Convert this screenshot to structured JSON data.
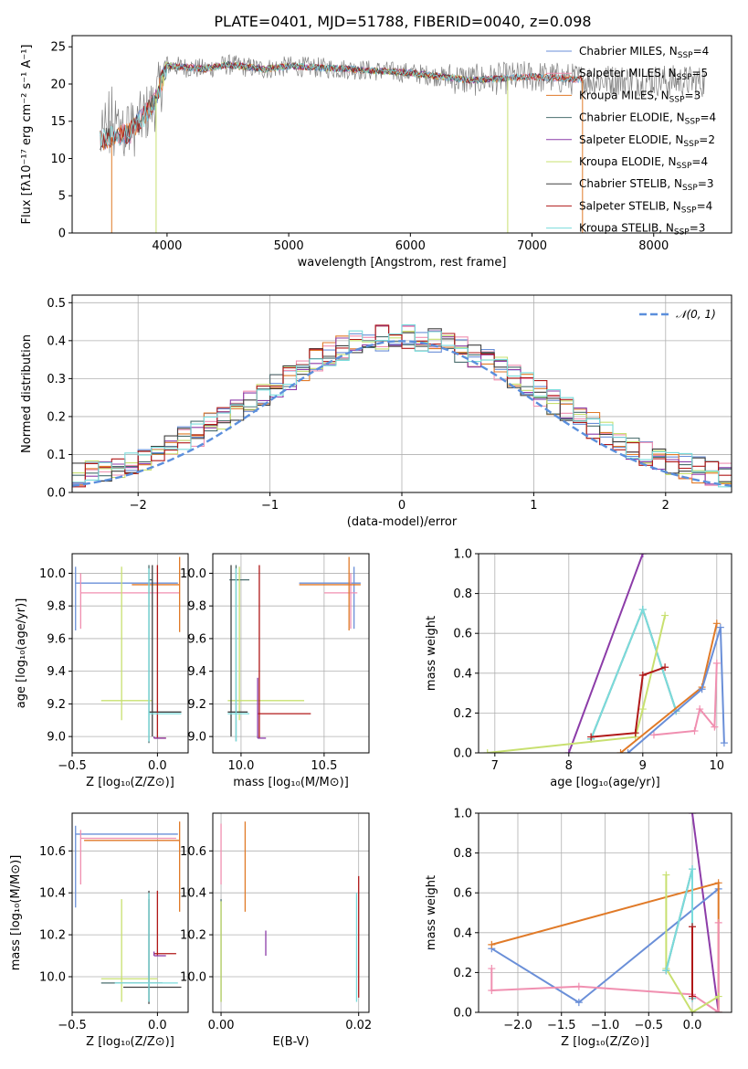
{
  "figure": {
    "title": "PLATE=0401, MJD=51788, FIBERID=0040, z=0.098"
  },
  "series_colors": [
    "#6a8fd8",
    "#f08fb0",
    "#e07a28",
    "#4a6e6e",
    "#8c3ca8",
    "#c8e070",
    "#404040",
    "#b01818",
    "#7adcdc"
  ],
  "spectrum_noise_color": "#808080",
  "gaussian_color": "#5b8fdc",
  "chart_data": [
    {
      "id": "spectrum",
      "type": "line",
      "title": "PLATE=0401, MJD=51788, FIBERID=0040, z=0.098",
      "xlabel": "wavelength [Angstrom, rest frame]",
      "ylabel": "Flux [fλ10⁻¹⁷ erg cm⁻² s⁻¹ A⁻¹]",
      "xlim": [
        3220,
        8640
      ],
      "ylim": [
        0,
        26.5
      ],
      "xticks": [
        4000,
        5000,
        6000,
        7000,
        8000
      ],
      "yticks": [
        0,
        5,
        10,
        15,
        20,
        25
      ],
      "grid": false,
      "legend_position": "top-right",
      "legend": [
        "Chabrier MILES, N_SSP=4",
        "Salpeter MILES, N_SSP=5",
        "Kroupa MILES, N_SSP=3",
        "Chabrier ELODIE, N_SSP=4",
        "Salpeter ELODIE, N_SSP=2",
        "Kroupa ELODIE, N_SSP=4",
        "Chabrier STELIB, N_SSP=3",
        "Salpeter STELIB, N_SSP=4",
        "Kroupa STELIB, N_SSP=3"
      ],
      "continuum_shape": {
        "x": [
          3450,
          3700,
          3800,
          3900,
          4000,
          4300,
          4500,
          4800,
          5000,
          5500,
          6000,
          6500,
          7000,
          7500,
          8000,
          8400
        ],
        "y": [
          12.5,
          13.5,
          15.5,
          17.5,
          22.5,
          22.0,
          22.6,
          22.0,
          22.4,
          22.0,
          21.5,
          20.5,
          21.0,
          20.5,
          20.5,
          20.3
        ]
      },
      "model_ranges": [
        [
          3450,
          7420
        ],
        [
          3450,
          7420
        ],
        [
          3450,
          7420
        ],
        [
          3900,
          6800
        ],
        [
          3900,
          6800
        ],
        [
          3900,
          6800
        ],
        [
          3450,
          7420
        ],
        [
          3450,
          7420
        ],
        [
          3450,
          7420
        ]
      ],
      "drop_lines": [
        {
          "x": 3545,
          "color_index": 2
        },
        {
          "x": 3910,
          "color_index": 5
        },
        {
          "x": 6800,
          "color_index": 5
        },
        {
          "x": 7415,
          "color_index": 2
        }
      ]
    },
    {
      "id": "residual_hist",
      "type": "step",
      "xlabel": "(data-model)/error",
      "ylabel": "Normed distribution",
      "xlim": [
        -2.5,
        2.5
      ],
      "ylim": [
        0,
        0.52
      ],
      "xticks": [
        -2,
        -1,
        0,
        1,
        2
      ],
      "yticks": [
        0.0,
        0.1,
        0.2,
        0.3,
        0.4,
        0.5
      ],
      "grid": true,
      "legend_position": "top-right",
      "legend": [
        "𝒩(0, 1)"
      ],
      "bin_width": 0.1
    },
    {
      "id": "age_vs_Z",
      "type": "errorbar",
      "xlabel": "Z [log₁₀(Z/Z⊙)]",
      "ylabel": "age  [log₁₀(age/yr)]",
      "xlim": [
        -0.5,
        0.18
      ],
      "ylim": [
        8.9,
        10.12
      ],
      "xticks": [
        -0.5,
        0.0
      ],
      "yticks": [
        9.0,
        9.2,
        9.4,
        9.6,
        9.8,
        10.0
      ],
      "grid": true,
      "points": [
        {
          "c": 0,
          "x": -0.48,
          "xe": [
            -0.48,
            0.12
          ],
          "y": 9.94,
          "ye": [
            9.65,
            10.04
          ]
        },
        {
          "c": 1,
          "x": -0.45,
          "xe": [
            -0.45,
            0.13
          ],
          "y": 9.88,
          "ye": [
            9.66,
            10.0
          ]
        },
        {
          "c": 2,
          "x": 0.13,
          "xe": [
            -0.15,
            0.13
          ],
          "y": 9.93,
          "ye": [
            9.64,
            10.1
          ]
        },
        {
          "c": 3,
          "x": -0.05,
          "xe": [
            -0.05,
            -0.03
          ],
          "y": 9.96,
          "ye": [
            8.96,
            10.05
          ]
        },
        {
          "c": 5,
          "x": -0.21,
          "xe": [
            -0.33,
            -0.03
          ],
          "y": 9.22,
          "ye": [
            9.1,
            10.04
          ]
        },
        {
          "c": 6,
          "x": -0.03,
          "xe": [
            -0.05,
            0.14
          ],
          "y": 9.15,
          "ye": [
            9.0,
            10.05
          ]
        },
        {
          "c": 7,
          "x": 0.0,
          "xe": [
            -0.02,
            0.05
          ],
          "y": 8.99,
          "ye": [
            8.99,
            10.05
          ]
        },
        {
          "c": 8,
          "x": -0.05,
          "xe": [
            -0.05,
            0.14
          ],
          "y": 9.14,
          "ye": [
            8.97,
            10.03
          ]
        },
        {
          "c": 4,
          "x": -0.02,
          "xe": [
            -0.02,
            0.05
          ],
          "y": 8.99,
          "ye": [
            8.99,
            9.0
          ]
        }
      ]
    },
    {
      "id": "age_vs_mass",
      "type": "errorbar",
      "xlabel": "mass [log₁₀(M/M⊙)]",
      "ylabel": "",
      "xlim": [
        9.83,
        10.77
      ],
      "ylim": [
        8.9,
        10.12
      ],
      "xticks": [
        10.0,
        10.5
      ],
      "yticks": [
        9.0,
        9.2,
        9.4,
        9.6,
        9.8,
        10.0
      ],
      "grid": true,
      "points": [
        {
          "c": 0,
          "x": 10.68,
          "xe": [
            10.35,
            10.72
          ],
          "y": 9.94,
          "ye": [
            9.66,
            10.04
          ]
        },
        {
          "c": 1,
          "x": 10.66,
          "xe": [
            10.5,
            10.7
          ],
          "y": 9.88,
          "ye": [
            9.66,
            10.0
          ]
        },
        {
          "c": 2,
          "x": 10.65,
          "xe": [
            10.35,
            10.72
          ],
          "y": 9.93,
          "ye": [
            9.65,
            10.1
          ]
        },
        {
          "c": 3,
          "x": 9.97,
          "xe": [
            9.93,
            10.05
          ],
          "y": 9.96,
          "ye": [
            8.97,
            10.05
          ]
        },
        {
          "c": 5,
          "x": 9.99,
          "xe": [
            9.92,
            10.38
          ],
          "y": 9.22,
          "ye": [
            9.1,
            10.04
          ]
        },
        {
          "c": 6,
          "x": 9.94,
          "xe": [
            9.92,
            10.04
          ],
          "y": 9.15,
          "ye": [
            9.0,
            10.05
          ]
        },
        {
          "c": 7,
          "x": 10.11,
          "xe": [
            10.1,
            10.42
          ],
          "y": 9.14,
          "ye": [
            8.99,
            10.05
          ]
        },
        {
          "c": 8,
          "x": 9.97,
          "xe": [
            9.92,
            10.05
          ],
          "y": 9.14,
          "ye": [
            8.97,
            10.03
          ]
        },
        {
          "c": 4,
          "x": 10.1,
          "xe": [
            10.1,
            10.15
          ],
          "y": 8.99,
          "ye": [
            8.99,
            9.36
          ]
        }
      ]
    },
    {
      "id": "weight_vs_age",
      "type": "line",
      "xlabel": "age  [log₁₀(age/yr)]",
      "ylabel": "mass weight",
      "xlim": [
        6.78,
        10.2
      ],
      "ylim": [
        0,
        1.0
      ],
      "xticks": [
        7,
        8,
        9,
        10
      ],
      "yticks": [
        0.0,
        0.2,
        0.4,
        0.6,
        0.8,
        1.0
      ],
      "grid": true,
      "series": [
        {
          "c": 4,
          "x": [
            8.0,
            9.0
          ],
          "y": [
            0.0,
            1.0
          ]
        },
        {
          "c": 3,
          "x": [
            8.3,
            9.0,
            9.45
          ],
          "y": [
            0.07,
            0.72,
            0.21
          ]
        },
        {
          "c": 8,
          "x": [
            8.3,
            9.0,
            9.45
          ],
          "y": [
            0.07,
            0.72,
            0.21
          ]
        },
        {
          "c": 5,
          "x": [
            6.9,
            8.9,
            9.0,
            9.3
          ],
          "y": [
            0.0,
            0.08,
            0.22,
            0.69
          ]
        },
        {
          "c": 7,
          "x": [
            8.3,
            8.9,
            9.0,
            9.3
          ],
          "y": [
            0.08,
            0.1,
            0.39,
            0.43
          ]
        },
        {
          "c": 1,
          "x": [
            9.15,
            9.7,
            9.77,
            9.97,
            10.0
          ],
          "y": [
            0.09,
            0.11,
            0.22,
            0.13,
            0.45
          ]
        },
        {
          "c": 2,
          "x": [
            8.7,
            9.8,
            10.0
          ],
          "y": [
            0.0,
            0.33,
            0.65
          ]
        },
        {
          "c": 0,
          "x": [
            8.8,
            9.8,
            10.05,
            10.1
          ],
          "y": [
            0.0,
            0.32,
            0.63,
            0.05
          ]
        }
      ]
    },
    {
      "id": "mass_vs_Z",
      "type": "errorbar",
      "xlabel": "Z [log₁₀(Z/Z⊙)]",
      "ylabel": "mass [log₁₀(M/M⊙)]",
      "xlim": [
        -0.5,
        0.18
      ],
      "ylim": [
        9.83,
        10.78
      ],
      "xticks": [
        -0.5,
        0.0
      ],
      "yticks": [
        10.0,
        10.2,
        10.4,
        10.6
      ],
      "grid": true,
      "points": [
        {
          "c": 0,
          "x": -0.48,
          "xe": [
            -0.48,
            0.12
          ],
          "y": 10.68,
          "ye": [
            10.33,
            10.72
          ]
        },
        {
          "c": 1,
          "x": -0.45,
          "xe": [
            -0.45,
            0.11
          ],
          "y": 10.66,
          "ye": [
            10.44,
            10.7
          ]
        },
        {
          "c": 2,
          "x": 0.13,
          "xe": [
            -0.43,
            0.13
          ],
          "y": 10.65,
          "ye": [
            10.31,
            10.74
          ]
        },
        {
          "c": 3,
          "x": -0.05,
          "xe": [
            -0.33,
            0.03
          ],
          "y": 9.97,
          "ye": [
            9.88,
            10.37
          ]
        },
        {
          "c": 5,
          "x": -0.21,
          "xe": [
            -0.33,
            0.0
          ],
          "y": 9.99,
          "ye": [
            9.88,
            10.37
          ]
        },
        {
          "c": 6,
          "x": -0.05,
          "xe": [
            -0.2,
            0.14
          ],
          "y": 9.95,
          "ye": [
            9.87,
            10.41
          ]
        },
        {
          "c": 7,
          "x": 0.0,
          "xe": [
            -0.02,
            0.11
          ],
          "y": 10.11,
          "ye": [
            10.1,
            10.41
          ]
        },
        {
          "c": 8,
          "x": -0.05,
          "xe": [
            -0.25,
            0.12
          ],
          "y": 9.97,
          "ye": [
            9.88,
            10.4
          ]
        },
        {
          "c": 4,
          "x": -0.02,
          "xe": [
            -0.02,
            0.05
          ],
          "y": 10.1,
          "ye": [
            10.1,
            10.12
          ]
        }
      ]
    },
    {
      "id": "mass_vs_ebv",
      "type": "errorbar",
      "xlabel": "E(B-V)",
      "ylabel": "",
      "xlim": [
        -0.0012,
        0.0215
      ],
      "ylim": [
        9.83,
        10.78
      ],
      "xticks": [
        0.0,
        0.02
      ],
      "yticks": [
        10.0,
        10.2,
        10.4,
        10.6
      ],
      "grid": true,
      "points": [
        {
          "c": 1,
          "x": 0.0,
          "xe": [
            0.0,
            0.0
          ],
          "y": 10.66,
          "ye": [
            10.44,
            10.73
          ]
        },
        {
          "c": 3,
          "x": 0.0,
          "xe": [
            0.0,
            0.0
          ],
          "y": 9.97,
          "ye": [
            9.88,
            10.37
          ]
        },
        {
          "c": 5,
          "x": 0.0,
          "xe": [
            0.0,
            0.0
          ],
          "y": 9.99,
          "ye": [
            9.88,
            10.36
          ]
        },
        {
          "c": 2,
          "x": 0.0035,
          "xe": [
            0.0035,
            0.0035
          ],
          "y": 10.65,
          "ye": [
            10.31,
            10.74
          ]
        },
        {
          "c": 4,
          "x": 0.0065,
          "xe": [
            0.0065,
            0.0065
          ],
          "y": 10.1,
          "ye": [
            10.1,
            10.22
          ]
        },
        {
          "c": 7,
          "x": 0.02,
          "xe": [
            0.02,
            0.02
          ],
          "y": 10.11,
          "ye": [
            9.9,
            10.48
          ]
        },
        {
          "c": 8,
          "x": 0.0197,
          "xe": [
            0.0197,
            0.0197
          ],
          "y": 9.97,
          "ye": [
            9.88,
            10.4
          ]
        }
      ]
    },
    {
      "id": "weight_vs_Z",
      "type": "line",
      "xlabel": "Z [log₁₀(Z/Z⊙)]",
      "ylabel": "mass weight",
      "xlim": [
        -2.45,
        0.45
      ],
      "ylim": [
        0,
        1.0
      ],
      "xticks": [
        -2.0,
        -1.5,
        -1.0,
        -0.5,
        0.0
      ],
      "yticks": [
        0.0,
        0.2,
        0.4,
        0.6,
        0.8,
        1.0
      ],
      "grid": true,
      "series": [
        {
          "c": 4,
          "x": [
            0.0,
            0.3
          ],
          "y": [
            1.0,
            0.0
          ]
        },
        {
          "c": 0,
          "x": [
            -2.3,
            -1.3,
            0.3
          ],
          "y": [
            0.32,
            0.05,
            0.62
          ]
        },
        {
          "c": 2,
          "x": [
            -2.3,
            0.3,
            0.3
          ],
          "y": [
            0.34,
            0.65,
            0.0
          ]
        },
        {
          "c": 1,
          "x": [
            -2.3,
            -2.3,
            -1.3,
            0.0,
            0.3,
            0.3
          ],
          "y": [
            0.22,
            0.11,
            0.13,
            0.09,
            0.0,
            0.45
          ]
        },
        {
          "c": 5,
          "x": [
            -0.3,
            -0.3,
            0.0,
            0.3
          ],
          "y": [
            0.69,
            0.22,
            0.0,
            0.08
          ]
        },
        {
          "c": 3,
          "x": [
            -0.3,
            0.0,
            0.0
          ],
          "y": [
            0.21,
            0.72,
            0.07
          ]
        },
        {
          "c": 8,
          "x": [
            -0.3,
            0.0,
            0.0
          ],
          "y": [
            0.21,
            0.72,
            0.07
          ]
        },
        {
          "c": 7,
          "x": [
            0.0,
            0.0
          ],
          "y": [
            0.43,
            0.08
          ]
        }
      ]
    }
  ]
}
